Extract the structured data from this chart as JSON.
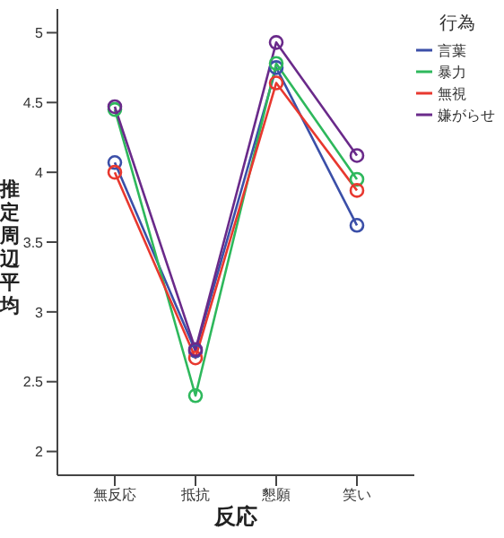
{
  "chart_data": {
    "type": "line",
    "xlabel": "反応",
    "ylabel": "推定周辺平均",
    "legend_title": "行為",
    "categories": [
      "無反応",
      "抵抗",
      "懇願",
      "笑い"
    ],
    "series": [
      {
        "name": "言葉",
        "color": "#3b4fa8",
        "values": [
          4.07,
          2.72,
          4.75,
          3.62
        ]
      },
      {
        "name": "暴力",
        "color": "#2eb85c",
        "values": [
          4.45,
          2.4,
          4.78,
          3.95
        ]
      },
      {
        "name": "無視",
        "color": "#e8382f",
        "values": [
          4.0,
          2.67,
          4.64,
          3.87
        ]
      },
      {
        "name": "嫌がらせ",
        "color": "#6a2a8a",
        "values": [
          4.47,
          2.73,
          4.93,
          4.12
        ]
      }
    ],
    "ylim": [
      1.83,
      5.17
    ],
    "yticks": [
      2,
      2.5,
      3,
      3.5,
      4,
      4.5,
      5
    ],
    "grid": false,
    "legend": "right",
    "marker": "circle",
    "line_style": "solid"
  }
}
